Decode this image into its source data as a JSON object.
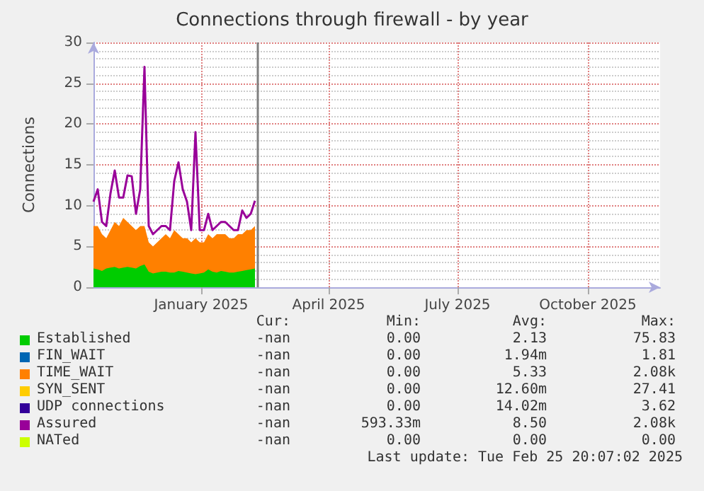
{
  "chart_data": {
    "type": "area",
    "title": "Connections through firewall - by year",
    "ylabel": "Connections",
    "stacked": true,
    "grid": true,
    "legend": "bottom",
    "x": [
      "2024-10-17",
      "2024-10-20",
      "2024-10-23",
      "2024-10-26",
      "2024-10-29",
      "2024-11-01",
      "2024-11-04",
      "2024-11-07",
      "2024-11-10",
      "2024-11-13",
      "2024-11-16",
      "2024-11-19",
      "2024-11-22",
      "2024-11-25",
      "2024-11-28",
      "2024-12-01",
      "2024-12-04",
      "2024-12-07",
      "2024-12-10",
      "2024-12-13",
      "2024-12-16",
      "2024-12-19",
      "2024-12-22",
      "2024-12-25",
      "2024-12-28",
      "2024-12-31",
      "2025-01-03",
      "2025-01-06",
      "2025-01-09",
      "2025-01-12",
      "2025-01-15",
      "2025-01-18",
      "2025-01-21",
      "2025-01-24",
      "2025-01-27",
      "2025-01-30",
      "2025-02-02",
      "2025-02-05",
      "2025-02-08"
    ],
    "xlim": [
      "2024-10-17",
      "2025-11-21"
    ],
    "xticks": [
      {
        "value": "2025-01-01",
        "label": "January 2025"
      },
      {
        "value": "2025-04-01",
        "label": "April 2025"
      },
      {
        "value": "2025-07-01",
        "label": "July 2025"
      },
      {
        "value": "2025-10-01",
        "label": "October 2025"
      }
    ],
    "ylim": [
      0,
      30
    ],
    "yticks": [
      0,
      5,
      10,
      15,
      20,
      25,
      30
    ],
    "series": [
      {
        "name": "Established",
        "color": "#00cc00",
        "values": [
          2.3,
          2.2,
          2.0,
          2.3,
          2.4,
          2.5,
          2.3,
          2.4,
          2.5,
          2.4,
          2.3,
          2.6,
          2.8,
          1.9,
          1.7,
          1.8,
          1.9,
          1.9,
          1.8,
          1.8,
          2.0,
          1.9,
          1.8,
          1.7,
          1.6,
          1.7,
          1.8,
          2.2,
          1.9,
          1.8,
          2.0,
          1.9,
          1.8,
          1.8,
          1.9,
          2.0,
          2.1,
          2.2,
          2.3
        ]
      },
      {
        "name": "FIN_WAIT",
        "color": "#0066b3",
        "values": [
          null,
          null,
          null,
          null,
          null,
          null,
          null,
          null,
          null,
          null,
          null,
          null,
          null,
          null,
          null,
          null,
          null,
          null,
          null,
          null,
          null,
          null,
          null,
          null,
          null,
          null,
          null,
          null,
          null,
          null,
          null,
          null,
          null,
          null,
          null,
          null,
          null,
          null,
          null
        ]
      },
      {
        "name": "TIME_WAIT",
        "color": "#ff8000",
        "values": [
          5.2,
          5.3,
          4.5,
          3.7,
          4.6,
          5.5,
          5.2,
          6.1,
          5.5,
          5.1,
          4.7,
          4.9,
          4.7,
          3.6,
          3.3,
          3.7,
          4.1,
          4.6,
          4.2,
          5.2,
          4.5,
          4.1,
          4.2,
          3.8,
          4.4,
          3.8,
          3.7,
          4.3,
          4.1,
          4.7,
          4.5,
          4.6,
          4.2,
          4.2,
          4.6,
          4.5,
          4.9,
          4.8,
          5.2
        ]
      },
      {
        "name": "SYN_SENT",
        "color": "#ffcc00",
        "values": [
          null,
          null,
          null,
          null,
          null,
          null,
          null,
          null,
          null,
          null,
          null,
          null,
          null,
          null,
          null,
          null,
          null,
          null,
          null,
          null,
          null,
          null,
          null,
          null,
          null,
          null,
          null,
          null,
          null,
          null,
          null,
          null,
          null,
          null,
          null,
          null,
          null,
          null,
          null
        ]
      },
      {
        "name": "UDP connections",
        "color": "#330099",
        "values": [
          null,
          null,
          null,
          null,
          null,
          null,
          null,
          null,
          null,
          null,
          null,
          null,
          null,
          null,
          null,
          null,
          null,
          null,
          null,
          null,
          null,
          null,
          null,
          null,
          null,
          null,
          null,
          null,
          null,
          null,
          null,
          null,
          null,
          null,
          null,
          null,
          null,
          null,
          null
        ]
      },
      {
        "name": "Assured",
        "type": "line",
        "color": "#990099",
        "values": [
          10.5,
          12,
          8,
          7.5,
          11.5,
          14.3,
          11,
          11,
          13.7,
          13.6,
          9,
          12,
          27,
          7.5,
          6.5,
          7,
          7.5,
          7.5,
          7,
          13,
          15.3,
          12,
          10.5,
          7,
          19,
          7,
          7,
          9,
          7,
          7.5,
          8,
          8,
          7.5,
          7,
          7,
          9.4,
          8.5,
          9,
          10.6
        ]
      },
      {
        "name": "NATed",
        "color": "#ccff00",
        "values": [
          null,
          null,
          null,
          null,
          null,
          null,
          null,
          null,
          null,
          null,
          null,
          null,
          null,
          null,
          null,
          null,
          null,
          null,
          null,
          null,
          null,
          null,
          null,
          null,
          null,
          null,
          null,
          null,
          null,
          null,
          null,
          null,
          null,
          null,
          null,
          null,
          null,
          null,
          null
        ]
      }
    ],
    "ref_lines": [
      {
        "axis": "x",
        "value": "2025-02-10",
        "color": "#808080"
      }
    ],
    "annotations": [
      "Cur:",
      "Min:",
      "Avg:",
      "Max:",
      "-nan",
      "0.00",
      "2.13",
      "75.83",
      "-nan",
      "0.00",
      "1.94m",
      "1.81",
      "-nan",
      "0.00",
      "5.33",
      "2.08k",
      "-nan",
      "0.00",
      "12.60m",
      "27.41",
      "-nan",
      "0.00",
      "14.02m",
      "3.62",
      "-nan",
      "593.33m",
      "8.50",
      "2.08k",
      "-nan",
      "0.00",
      "0.00",
      "0.00",
      "Last update: Tue Feb 25 20:07:02 2025"
    ]
  }
}
